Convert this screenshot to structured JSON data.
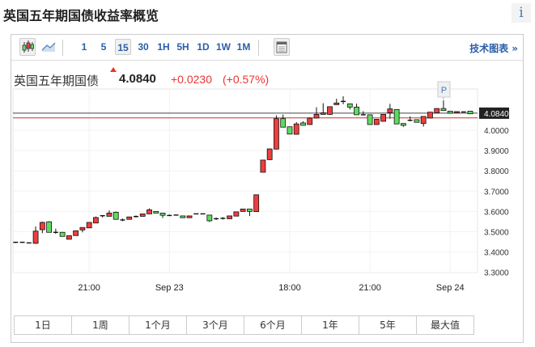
{
  "page_title": "英国五年期国债收益率概览",
  "info_icon": "i",
  "toolbar": {
    "chart_types": [
      {
        "icon": "candlestick-icon",
        "selected": true
      },
      {
        "icon": "line-chart-icon",
        "selected": false
      }
    ],
    "intervals": [
      "1",
      "5",
      "15",
      "30",
      "1H",
      "5H",
      "1D",
      "1W",
      "1M"
    ],
    "selected_interval": "15",
    "table_icon": "table-icon",
    "tech_chart_label": "技术图表 »"
  },
  "quote": {
    "name": "英国五年期国债",
    "value": "4.0840",
    "change": "+0.0230",
    "change_pct": "(+0.57%)"
  },
  "colors": {
    "up": "#ef3d3d",
    "down": "#5fdc5f",
    "accent": "#2b5ea8",
    "prev_close_line": "#c0392b"
  },
  "chart_data": {
    "type": "candlestick",
    "ylim": [
      3.3,
      4.18
    ],
    "y_ticks": [
      "4.0000",
      "3.9000",
      "3.8000",
      "3.7000",
      "3.6000",
      "3.5000",
      "3.4000",
      "3.3000"
    ],
    "y_tick_values": [
      4.0,
      3.9,
      3.8,
      3.7,
      3.6,
      3.5,
      3.4,
      3.3
    ],
    "last_price": 4.084,
    "last_price_label": "4.0840",
    "prev_close": 4.061,
    "x_ticks": [
      {
        "label": "21:00",
        "index": 11
      },
      {
        "label": "Sep 23",
        "index": 23
      },
      {
        "label": "18:00",
        "index": 41
      },
      {
        "label": "21:00",
        "index": 53
      },
      {
        "label": "Sep 24",
        "index": 65
      }
    ],
    "marker": {
      "label": "P",
      "index": 64
    },
    "ohlc": [
      [
        3.445,
        3.448,
        3.444,
        3.448
      ],
      [
        3.448,
        3.448,
        3.445,
        3.445
      ],
      [
        3.445,
        3.446,
        3.444,
        3.445
      ],
      [
        3.443,
        3.526,
        3.44,
        3.503
      ],
      [
        3.51,
        3.55,
        3.493,
        3.546
      ],
      [
        3.549,
        3.552,
        3.497,
        3.497
      ],
      [
        3.497,
        3.515,
        3.49,
        3.497
      ],
      [
        3.497,
        3.499,
        3.477,
        3.477
      ],
      [
        3.463,
        3.481,
        3.462,
        3.481
      ],
      [
        3.481,
        3.505,
        3.48,
        3.505
      ],
      [
        3.509,
        3.521,
        3.497,
        3.521
      ],
      [
        3.519,
        3.546,
        3.518,
        3.546
      ],
      [
        3.543,
        3.575,
        3.542,
        3.57
      ],
      [
        3.579,
        3.58,
        3.57,
        3.579
      ],
      [
        3.576,
        3.605,
        3.575,
        3.592
      ],
      [
        3.596,
        3.6,
        3.561,
        3.561
      ],
      [
        3.558,
        3.565,
        3.552,
        3.558
      ],
      [
        3.561,
        3.573,
        3.56,
        3.573
      ],
      [
        3.575,
        3.58,
        3.57,
        3.575
      ],
      [
        3.576,
        3.588,
        3.575,
        3.588
      ],
      [
        3.588,
        3.615,
        3.587,
        3.608
      ],
      [
        3.6,
        3.601,
        3.592,
        3.592
      ],
      [
        3.592,
        3.593,
        3.568,
        3.581
      ],
      [
        3.58,
        3.585,
        3.578,
        3.58
      ],
      [
        3.582,
        3.582,
        3.582,
        3.582
      ],
      [
        3.578,
        3.579,
        3.569,
        3.569
      ],
      [
        3.569,
        3.578,
        3.568,
        3.578
      ],
      [
        3.588,
        3.588,
        3.588,
        3.588
      ],
      [
        3.588,
        3.588,
        3.588,
        3.588
      ],
      [
        3.582,
        3.583,
        3.548,
        3.554
      ],
      [
        3.564,
        3.57,
        3.558,
        3.564
      ],
      [
        3.566,
        3.572,
        3.56,
        3.566
      ],
      [
        3.564,
        3.578,
        3.563,
        3.578
      ],
      [
        3.577,
        3.598,
        3.576,
        3.598
      ],
      [
        3.6,
        3.612,
        3.599,
        3.612
      ],
      [
        3.612,
        3.613,
        3.577,
        3.6
      ],
      [
        3.599,
        3.682,
        3.598,
        3.682
      ],
      [
        3.793,
        3.853,
        3.792,
        3.853
      ],
      [
        3.855,
        3.91,
        3.853,
        3.908
      ],
      [
        3.907,
        4.073,
        3.906,
        4.057
      ],
      [
        4.057,
        4.077,
        4.015,
        4.015
      ],
      [
        4.017,
        4.018,
        3.981,
        3.981
      ],
      [
        3.98,
        4.04,
        3.978,
        4.031
      ],
      [
        4.036,
        4.044,
        4.024,
        4.024
      ],
      [
        4.028,
        4.064,
        4.027,
        4.06
      ],
      [
        4.06,
        4.113,
        4.059,
        4.078
      ],
      [
        4.078,
        4.133,
        4.077,
        4.086
      ],
      [
        4.078,
        4.116,
        4.076,
        4.116
      ],
      [
        4.126,
        4.155,
        4.125,
        4.134
      ],
      [
        4.142,
        4.167,
        4.128,
        4.142
      ],
      [
        4.13,
        4.131,
        4.102,
        4.114
      ],
      [
        4.114,
        4.131,
        4.076,
        4.076
      ],
      [
        4.076,
        4.094,
        4.075,
        4.076
      ],
      [
        4.076,
        4.077,
        4.028,
        4.028
      ],
      [
        4.028,
        4.054,
        4.027,
        4.054
      ],
      [
        4.044,
        4.078,
        4.043,
        4.078
      ],
      [
        4.086,
        4.13,
        4.057,
        4.105
      ],
      [
        4.102,
        4.103,
        4.031,
        4.031
      ],
      [
        4.033,
        4.034,
        4.017,
        4.024
      ],
      [
        4.049,
        4.068,
        4.044,
        4.049
      ],
      [
        4.052,
        4.053,
        4.039,
        4.039
      ],
      [
        4.033,
        4.068,
        4.018,
        4.068
      ],
      [
        4.06,
        4.089,
        4.059,
        4.089
      ],
      [
        4.086,
        4.107,
        4.085,
        4.107
      ],
      [
        4.107,
        4.147,
        4.097,
        4.097
      ],
      [
        4.094,
        4.095,
        4.084,
        4.084
      ],
      [
        4.086,
        4.092,
        4.085,
        4.092
      ],
      [
        4.09,
        4.091,
        4.089,
        4.09
      ],
      [
        4.094,
        4.095,
        4.081,
        4.081
      ]
    ]
  },
  "ranges": [
    "1日",
    "1周",
    "1个月",
    "3个月",
    "6个月",
    "1年",
    "5年",
    "最大值"
  ]
}
